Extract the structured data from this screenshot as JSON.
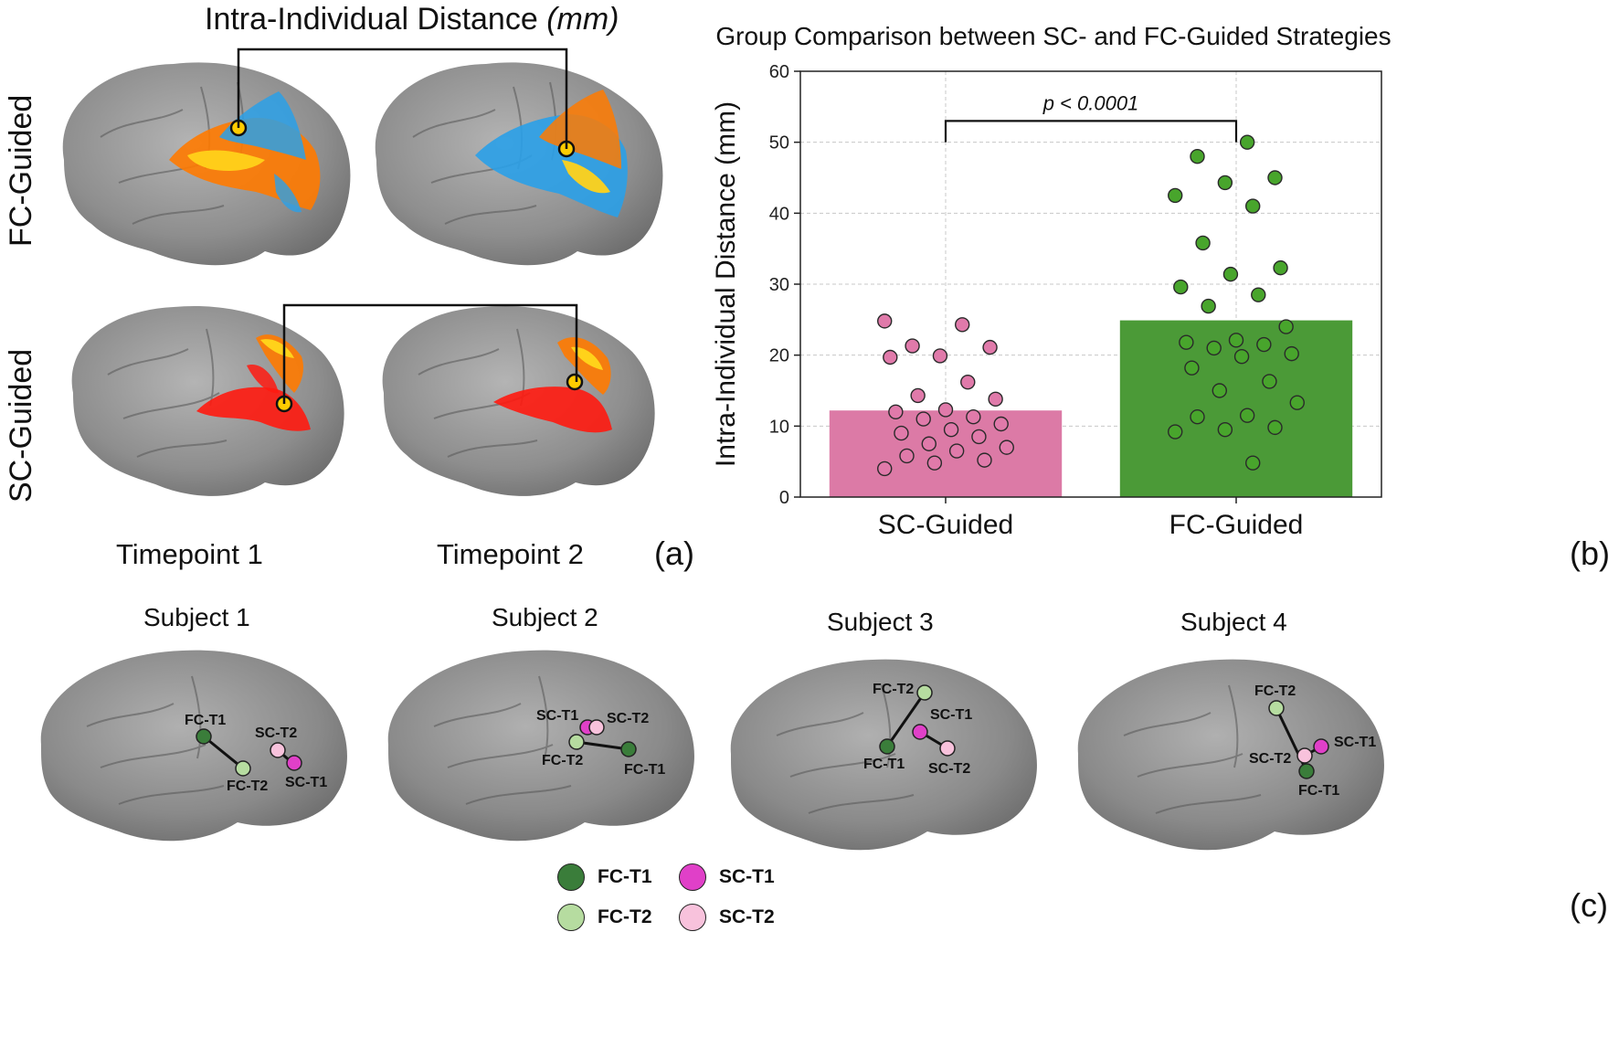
{
  "panel_a": {
    "title": "Intra-Individual Distance",
    "title_unit": "(mm)",
    "row_labels": [
      "FC-Guided",
      "SC-Guided"
    ],
    "timepoints": [
      "Timepoint 1",
      "Timepoint 2"
    ],
    "letter": "(a)"
  },
  "panel_b": {
    "letter": "(b)"
  },
  "panel_c": {
    "letter": "(c)",
    "subjects": [
      {
        "title": "Subject 1",
        "labels": {
          "fc_t1": "FC-T1",
          "fc_t2": "FC-T2",
          "sc_t1": "SC-T1",
          "sc_t2": "SC-T2"
        }
      },
      {
        "title": "Subject 2",
        "labels": {
          "fc_t1": "FC-T1",
          "fc_t2": "FC-T2",
          "sc_t1": "SC-T1",
          "sc_t2": "SC-T2"
        }
      },
      {
        "title": "Subject 3",
        "labels": {
          "fc_t1": "FC-T1",
          "fc_t2": "FC-T2",
          "sc_t1": "SC-T1",
          "sc_t2": "SC-T2"
        }
      },
      {
        "title": "Subject 4",
        "labels": {
          "fc_t1": "FC-T1",
          "fc_t2": "FC-T2",
          "sc_t1": "SC-T1",
          "sc_t2": "SC-T2"
        }
      }
    ],
    "legend": [
      {
        "label": "FC-T1",
        "color": "#3a7d3a"
      },
      {
        "label": "SC-T1",
        "color": "#e040c8"
      },
      {
        "label": "FC-T2",
        "color": "#b6dca0"
      },
      {
        "label": "SC-T2",
        "color": "#f8c2dc"
      }
    ]
  },
  "chart_data": {
    "type": "bar",
    "title": "Group Comparison between SC- and FC-Guided Strategies",
    "xlabel": "",
    "ylabel": "Intra-Individual Distance (mm)",
    "ylim": [
      0,
      60
    ],
    "yticks": [
      0,
      10,
      20,
      30,
      40,
      50,
      60
    ],
    "grid": true,
    "categories": [
      "SC-Guided",
      "FC-Guided"
    ],
    "values": [
      12.2,
      24.9
    ],
    "colors": [
      "#dc7aa6",
      "#4b9a37"
    ],
    "points_colors": [
      "#e07aaa",
      "#48a52c"
    ],
    "annotation": "p < 0.0001",
    "points": [
      [
        24.8,
        24.3,
        21.3,
        21.1,
        19.9,
        19.7,
        16.2,
        14.3,
        13.8,
        12.3,
        12.0,
        11.3,
        11.0,
        10.3,
        9.5,
        9.0,
        8.5,
        7.5,
        7.0,
        6.5,
        5.8,
        5.2,
        4.8,
        4.0
      ],
      [
        50.0,
        48.0,
        45.0,
        44.3,
        42.5,
        41.0,
        35.8,
        32.3,
        31.4,
        29.6,
        28.5,
        26.9,
        24.0,
        22.1,
        21.8,
        21.5,
        21.0,
        20.2,
        19.8,
        18.2,
        16.3,
        15.0,
        13.3,
        11.5,
        11.3,
        9.8,
        9.5,
        9.2,
        4.8
      ]
    ]
  }
}
